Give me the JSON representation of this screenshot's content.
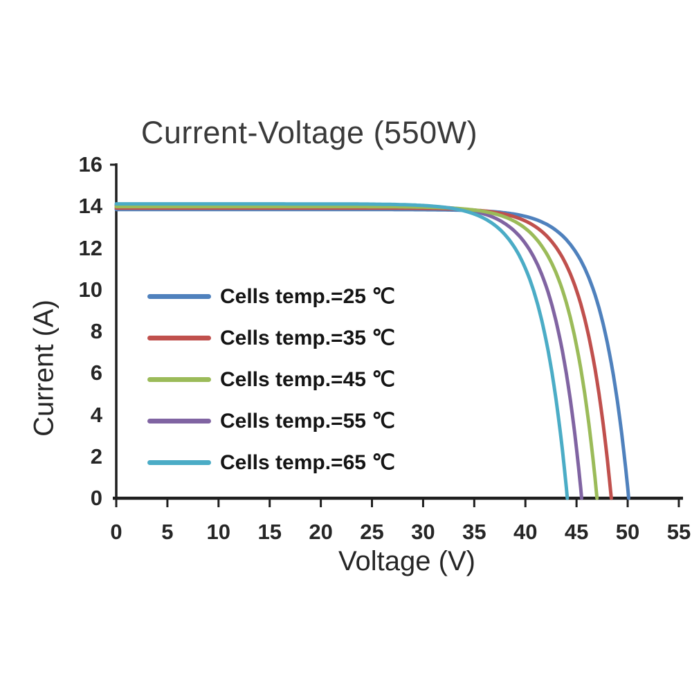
{
  "chart_data": {
    "type": "line",
    "title": "Current-Voltage (550W)",
    "xlabel": "Voltage (V)",
    "ylabel": "Current (A)",
    "xlim": [
      0,
      55
    ],
    "ylim": [
      0,
      16
    ],
    "xticks": [
      0,
      5,
      10,
      15,
      20,
      25,
      30,
      35,
      40,
      45,
      50,
      55
    ],
    "yticks": [
      0,
      2,
      4,
      6,
      8,
      10,
      12,
      14,
      16
    ],
    "grid": false,
    "legend_position": "inside-left-middle",
    "axis_color": "#1f1f1f",
    "series": [
      {
        "label": "Cells temp.=25 ℃",
        "color": "#4F81BD",
        "isc_a": 13.85,
        "voc_v": 50.1,
        "diode_a_v": 2.7,
        "points_v_i": [
          [
            0,
            13.85
          ],
          [
            5,
            13.85
          ],
          [
            10,
            13.85
          ],
          [
            15,
            13.85
          ],
          [
            20,
            13.85
          ],
          [
            25,
            13.85
          ],
          [
            30,
            13.8
          ],
          [
            35,
            13.8
          ],
          [
            40,
            13.5
          ],
          [
            43,
            12.9
          ],
          [
            45,
            11.8
          ],
          [
            47,
            9.5
          ],
          [
            48.5,
            6.3
          ],
          [
            49.5,
            2.9
          ],
          [
            50.1,
            0
          ]
        ]
      },
      {
        "label": "Cells temp.=35 ℃",
        "color": "#C0504D",
        "isc_a": 13.92,
        "voc_v": 48.4,
        "diode_a_v": 2.7,
        "points_v_i": [
          [
            0,
            13.92
          ],
          [
            5,
            13.92
          ],
          [
            10,
            13.92
          ],
          [
            15,
            13.92
          ],
          [
            20,
            13.92
          ],
          [
            25,
            13.92
          ],
          [
            30,
            13.9
          ],
          [
            35,
            13.8
          ],
          [
            40,
            13.3
          ],
          [
            43,
            12.0
          ],
          [
            45,
            10.0
          ],
          [
            46.5,
            7.0
          ],
          [
            47.5,
            3.9
          ],
          [
            48.4,
            0
          ]
        ]
      },
      {
        "label": "Cells temp.=45 ℃",
        "color": "#9BBB59",
        "isc_a": 13.99,
        "voc_v": 47.0,
        "diode_a_v": 2.7,
        "points_v_i": [
          [
            0,
            13.99
          ],
          [
            5,
            13.99
          ],
          [
            10,
            13.99
          ],
          [
            15,
            13.99
          ],
          [
            20,
            13.99
          ],
          [
            25,
            13.99
          ],
          [
            30,
            13.96
          ],
          [
            35,
            13.8
          ],
          [
            40,
            13.0
          ],
          [
            42,
            11.8
          ],
          [
            44,
            9.4
          ],
          [
            45.5,
            6.0
          ],
          [
            46.5,
            2.5
          ],
          [
            47,
            0
          ]
        ]
      },
      {
        "label": "Cells temp.=55 ℃",
        "color": "#8064A2",
        "isc_a": 14.05,
        "voc_v": 45.5,
        "diode_a_v": 2.7,
        "points_v_i": [
          [
            0,
            14.05
          ],
          [
            5,
            14.05
          ],
          [
            10,
            14.05
          ],
          [
            15,
            14.05
          ],
          [
            20,
            14.05
          ],
          [
            25,
            14.05
          ],
          [
            30,
            14.0
          ],
          [
            35,
            13.8
          ],
          [
            38,
            13.2
          ],
          [
            40,
            12.2
          ],
          [
            42,
            10.2
          ],
          [
            44,
            6.0
          ],
          [
            45,
            2.6
          ],
          [
            45.5,
            0
          ]
        ]
      },
      {
        "label": "Cells temp.=65 ℃",
        "color": "#4BACC6",
        "isc_a": 14.12,
        "voc_v": 44.1,
        "diode_a_v": 2.7,
        "points_v_i": [
          [
            0,
            14.12
          ],
          [
            5,
            14.12
          ],
          [
            10,
            14.12
          ],
          [
            15,
            14.12
          ],
          [
            20,
            14.12
          ],
          [
            25,
            14.12
          ],
          [
            30,
            14.04
          ],
          [
            33,
            13.9
          ],
          [
            36,
            13.4
          ],
          [
            38,
            12.7
          ],
          [
            40,
            11.0
          ],
          [
            42,
            7.6
          ],
          [
            43.5,
            2.8
          ],
          [
            44.1,
            0
          ]
        ]
      }
    ]
  }
}
